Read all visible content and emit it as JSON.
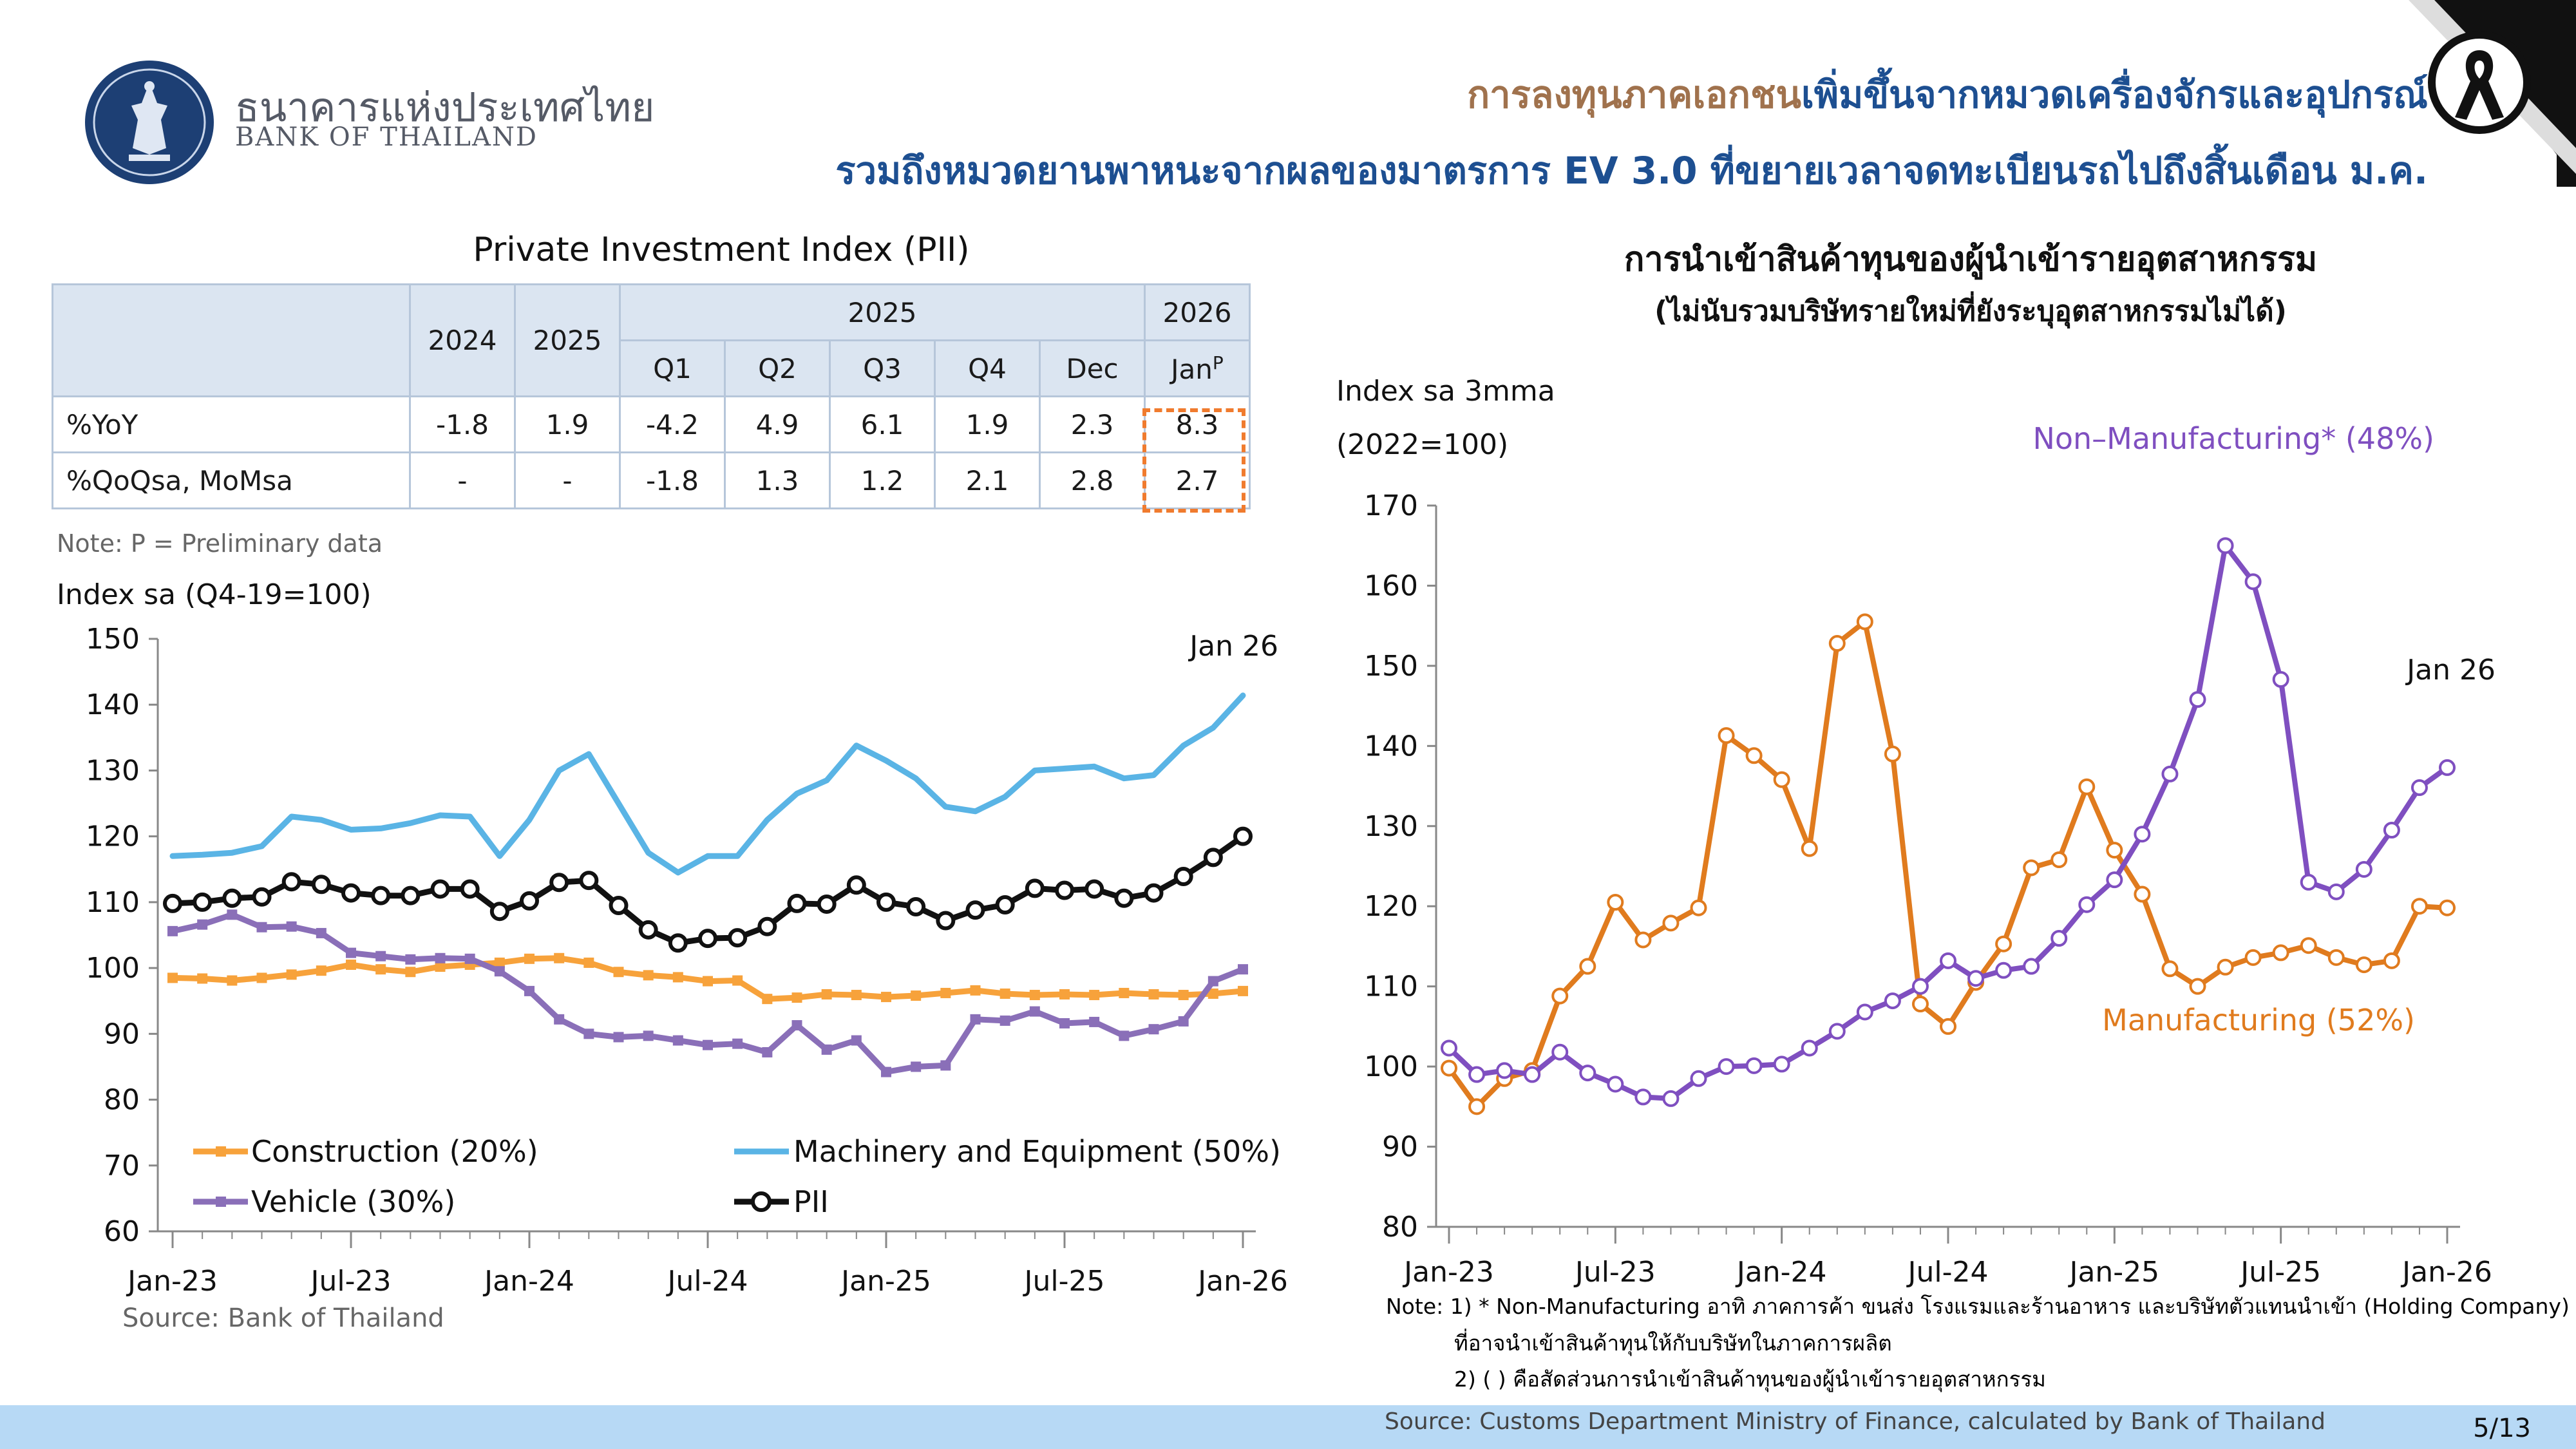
{
  "header": {
    "bank_name_thai": "ธนาคารแห่งประเทศไทย",
    "bank_name_eng": "BANK OF THAILAND",
    "title_line1_brown": "การลงทุนภาคเอกชน",
    "title_line1_blue": "เพิ่มขึ้นจากหมวดเครื่องจักรและอุปกรณ์",
    "title_line2": "รวมถึงหมวดยานพาหนะจากผลของมาตรการ EV 3.0 ที่ขยายเวลาจดทะเบียนรถไปถึงสิ้นเดือน ม.ค."
  },
  "colors": {
    "construction": "#f7a23b",
    "machinery": "#5ab4e5",
    "vehicle": "#8a6fb8",
    "pii": "#111111",
    "manufacturing": "#e07b1e",
    "non_manufacturing": "#7f4fc0",
    "title_blue": "#1d4f91",
    "title_brown": "#a0724d"
  },
  "table": {
    "title": "Private Investment Index (PII)",
    "header": {
      "year_2024": "2024",
      "year_2025": "2025",
      "group_2025": "2025",
      "group_2026": "2026",
      "quarters": [
        "Q1",
        "Q2",
        "Q3",
        "Q4",
        "Dec"
      ],
      "jan": "Jan",
      "jan_sup": "P"
    },
    "rows": [
      {
        "label": "%YoY",
        "values": [
          "-1.8",
          "1.9",
          "-4.2",
          "4.9",
          "6.1",
          "1.9",
          "2.3",
          "8.3"
        ]
      },
      {
        "label": "%QoQsa, MoMsa",
        "values": [
          "-",
          "-",
          "-1.8",
          "1.3",
          "1.2",
          "2.1",
          "2.8",
          "2.7"
        ]
      }
    ],
    "note": "Note: P = Preliminary data"
  },
  "chart_data": [
    {
      "type": "line",
      "ylabel": "Index sa (Q4-19=100)",
      "ylim": [
        60,
        150
      ],
      "yticks": [
        "150",
        "140",
        "130",
        "120",
        "110",
        "100",
        "90",
        "80",
        "70",
        "60"
      ],
      "x_tick_labels": [
        "Jan-23",
        "Jul-23",
        "Jan-24",
        "Jul-24",
        "Jan-25",
        "Jul-25",
        "Jan-26"
      ],
      "annotation": "Jan 26",
      "source": "Source: Bank of Thailand",
      "legend": [
        "Construction (20%)",
        "Machinery and Equipment (50%)",
        "Vehicle (30%)",
        "PII"
      ],
      "series": [
        {
          "name": "Construction (20%)",
          "color": "#f7a23b",
          "marker": "square",
          "values": [
            98.5,
            98.4,
            98.1,
            98.5,
            99.0,
            99.6,
            100.5,
            99.8,
            99.4,
            100.2,
            100.5,
            100.8,
            101.4,
            101.5,
            100.8,
            99.4,
            98.9,
            98.6,
            98.0,
            98.1,
            95.3,
            95.5,
            96.0,
            95.9,
            95.6,
            95.8,
            96.2,
            96.6,
            96.1,
            95.9,
            96.0,
            95.9,
            96.2,
            96.0,
            95.9,
            96.1,
            96.5
          ]
        },
        {
          "name": "Machinery and Equipment (50%)",
          "color": "#5ab4e5",
          "marker": "none",
          "values": [
            117.0,
            117.2,
            117.5,
            118.5,
            123.0,
            122.5,
            121.0,
            121.2,
            122.0,
            123.2,
            123.0,
            117.0,
            122.5,
            130.0,
            132.5,
            125.0,
            117.5,
            114.5,
            117.0,
            117.0,
            122.5,
            126.5,
            128.5,
            133.8,
            131.5,
            128.8,
            124.5,
            123.8,
            126.0,
            130.0,
            130.3,
            130.6,
            128.8,
            129.3,
            133.8,
            136.5,
            141.4
          ]
        },
        {
          "name": "Vehicle (30%)",
          "color": "#8a6fb8",
          "marker": "square",
          "values": [
            105.6,
            106.6,
            108.1,
            106.2,
            106.3,
            105.3,
            102.3,
            101.8,
            101.3,
            101.5,
            101.4,
            99.5,
            96.5,
            92.2,
            90.0,
            89.5,
            89.7,
            89.0,
            88.3,
            88.5,
            87.2,
            91.3,
            87.6,
            89.0,
            84.2,
            85.0,
            85.2,
            92.2,
            92.0,
            93.4,
            91.6,
            91.8,
            89.7,
            90.7,
            91.9,
            98.0,
            99.8
          ]
        },
        {
          "name": "PII",
          "color": "#111111",
          "marker": "circle",
          "values": [
            109.8,
            110.0,
            110.6,
            110.8,
            113.1,
            112.7,
            111.4,
            111.0,
            111.0,
            112.0,
            112.0,
            108.6,
            110.2,
            113.0,
            113.3,
            109.5,
            105.8,
            103.8,
            104.5,
            104.6,
            106.3,
            109.8,
            109.7,
            112.6,
            110.0,
            109.3,
            107.2,
            108.8,
            109.6,
            112.1,
            111.8,
            112.0,
            110.6,
            111.4,
            113.9,
            116.8,
            120.0
          ]
        }
      ]
    },
    {
      "type": "line",
      "title": "การนำเข้าสินค้าทุนของผู้นำเข้ารายอุตสาหกรรม",
      "subtitle": "(ไม่นับรวมบริษัทรายใหม่ที่ยังระบุอุตสาหกรรมไม่ได้)",
      "ylabel_line1": "Index sa 3mma",
      "ylabel_line2": "(2022=100)",
      "ylim": [
        80,
        170
      ],
      "yticks": [
        "170",
        "160",
        "150",
        "140",
        "130",
        "120",
        "110",
        "100",
        "90",
        "80"
      ],
      "x_tick_labels": [
        "Jan-23",
        "Jul-23",
        "Jan-24",
        "Jul-24",
        "Jan-25",
        "Jul-25",
        "Jan-26"
      ],
      "annotation": "Jan 26",
      "series": [
        {
          "name": "Manufacturing (52%)",
          "color": "#e07b1e",
          "marker": "open-circle",
          "values": [
            99.8,
            95.0,
            98.5,
            99.5,
            108.8,
            112.5,
            120.5,
            115.8,
            117.9,
            119.8,
            141.3,
            138.8,
            135.8,
            127.2,
            152.8,
            155.5,
            139.0,
            107.8,
            105.0,
            110.5,
            115.3,
            124.8,
            125.8,
            134.9,
            127.0,
            121.5,
            112.2,
            110.0,
            112.4,
            113.6,
            114.2,
            115.1,
            113.6,
            112.7,
            113.2,
            120.0,
            119.8
          ]
        },
        {
          "name": "Non–Manufacturing* (48%)",
          "color": "#7f4fc0",
          "marker": "open-circle",
          "values": [
            102.3,
            99.0,
            99.5,
            99.0,
            101.8,
            99.2,
            97.8,
            96.2,
            96.0,
            98.5,
            100.0,
            100.1,
            100.3,
            102.3,
            104.4,
            106.8,
            108.2,
            110.0,
            113.2,
            111.0,
            112.0,
            112.5,
            116.0,
            120.2,
            123.3,
            129.0,
            136.5,
            145.8,
            165.0,
            160.5,
            148.3,
            123.0,
            121.8,
            124.6,
            129.5,
            134.8,
            137.3
          ]
        }
      ],
      "note_line1": "Note: 1) * Non-Manufacturing อาทิ ภาคการค้า ขนส่ง โรงแรมและร้านอาหาร และบริษัทตัวแทนนำเข้า (Holding Company)",
      "note_line2": "ที่อาจนำเข้าสินค้าทุนให้กับบริษัทในภาคการผลิต",
      "note_line3": "2) ( ) คือสัดส่วนการนำเข้าสินค้าทุนของผู้นำเข้ารายอุตสาหกรรม"
    }
  ],
  "footer": {
    "source": "Source: Customs Department Ministry of Finance, calculated by Bank of Thailand",
    "page": "5/13"
  }
}
